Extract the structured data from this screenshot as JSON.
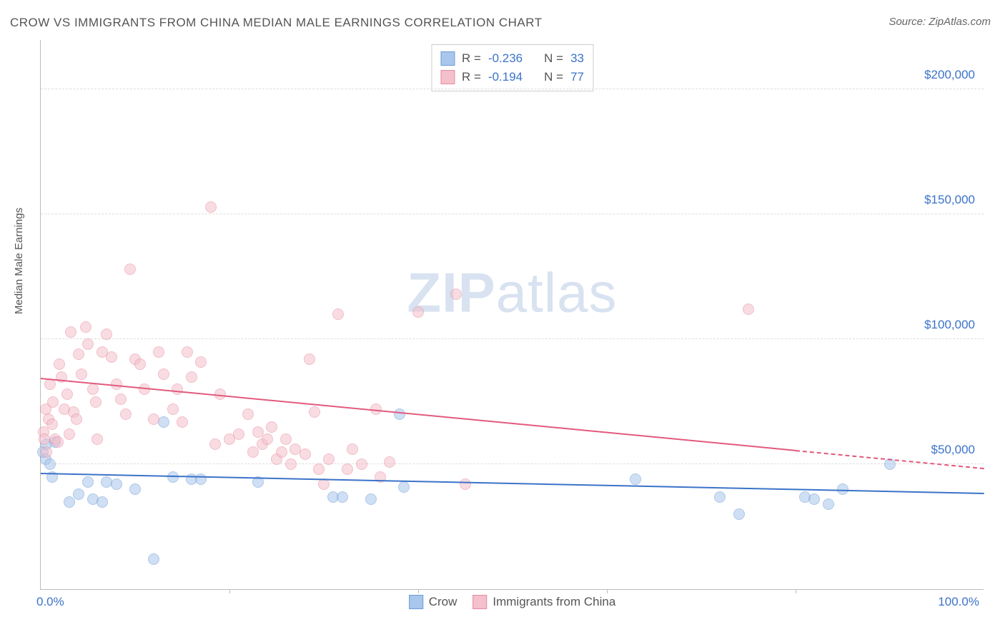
{
  "title": "CROW VS IMMIGRANTS FROM CHINA MEDIAN MALE EARNINGS CORRELATION CHART",
  "source": "Source: ZipAtlas.com",
  "watermark": {
    "bold": "ZIP",
    "light": "atlas"
  },
  "chart": {
    "type": "scatter",
    "y_axis_label": "Median Male Earnings",
    "x_min": 0,
    "x_max": 100,
    "y_min": 0,
    "y_max": 220000,
    "y_ticks": [
      50000,
      100000,
      150000,
      200000
    ],
    "y_tick_labels": [
      "$50,000",
      "$100,000",
      "$150,000",
      "$200,000"
    ],
    "x_tick_marks": [
      20,
      40,
      60,
      80
    ],
    "x_tick_left": "0.0%",
    "x_tick_right": "100.0%",
    "grid_color": "#dddddd",
    "axis_color": "#bbbbbb",
    "background_color": "#ffffff",
    "tick_label_color": "#3b73c9",
    "point_radius": 8,
    "point_opacity": 0.55,
    "series": [
      {
        "name": "Crow",
        "fill_color": "#a9c6ec",
        "stroke_color": "#6d9bd6",
        "points": [
          [
            0.2,
            55000
          ],
          [
            0.5,
            52000
          ],
          [
            0.6,
            58000
          ],
          [
            1.0,
            50000
          ],
          [
            1.2,
            45000
          ],
          [
            1.5,
            59000
          ],
          [
            3.0,
            35000
          ],
          [
            4.0,
            38000
          ],
          [
            5.0,
            43000
          ],
          [
            5.5,
            36000
          ],
          [
            6.5,
            35000
          ],
          [
            7.0,
            43000
          ],
          [
            8.0,
            42000
          ],
          [
            10.0,
            40000
          ],
          [
            12.0,
            12000
          ],
          [
            13.0,
            67000
          ],
          [
            14.0,
            45000
          ],
          [
            16.0,
            44000
          ],
          [
            17.0,
            44000
          ],
          [
            23.0,
            43000
          ],
          [
            31.0,
            37000
          ],
          [
            32.0,
            37000
          ],
          [
            35.0,
            36000
          ],
          [
            38.0,
            70000
          ],
          [
            38.5,
            41000
          ],
          [
            63.0,
            44000
          ],
          [
            72.0,
            37000
          ],
          [
            74.0,
            30000
          ],
          [
            81.0,
            37000
          ],
          [
            82.0,
            36000
          ],
          [
            83.5,
            34000
          ],
          [
            85.0,
            40000
          ],
          [
            90.0,
            50000
          ]
        ],
        "trend": {
          "color": "#3b73c9",
          "x1": 0,
          "y1": 46000,
          "x2": 100,
          "y2": 38000,
          "dash_from_x": null
        }
      },
      {
        "name": "Immigrants from China",
        "fill_color": "#f4c0cc",
        "stroke_color": "#e88aa2",
        "points": [
          [
            0.3,
            63000
          ],
          [
            0.4,
            60000
          ],
          [
            0.5,
            72000
          ],
          [
            0.6,
            55000
          ],
          [
            0.8,
            68000
          ],
          [
            1.0,
            82000
          ],
          [
            1.2,
            66000
          ],
          [
            1.3,
            75000
          ],
          [
            1.5,
            60000
          ],
          [
            1.8,
            59000
          ],
          [
            2.0,
            90000
          ],
          [
            2.2,
            85000
          ],
          [
            2.5,
            72000
          ],
          [
            2.8,
            78000
          ],
          [
            3.0,
            62000
          ],
          [
            3.2,
            103000
          ],
          [
            3.5,
            71000
          ],
          [
            3.8,
            68000
          ],
          [
            4.0,
            94000
          ],
          [
            4.3,
            86000
          ],
          [
            4.8,
            105000
          ],
          [
            5.0,
            98000
          ],
          [
            5.5,
            80000
          ],
          [
            5.8,
            75000
          ],
          [
            6.0,
            60000
          ],
          [
            6.5,
            95000
          ],
          [
            7.0,
            102000
          ],
          [
            7.5,
            93000
          ],
          [
            8.0,
            82000
          ],
          [
            8.5,
            76000
          ],
          [
            9.0,
            70000
          ],
          [
            9.5,
            128000
          ],
          [
            10.0,
            92000
          ],
          [
            10.5,
            90000
          ],
          [
            11.0,
            80000
          ],
          [
            12.0,
            68000
          ],
          [
            12.5,
            95000
          ],
          [
            13.0,
            86000
          ],
          [
            14.0,
            72000
          ],
          [
            14.5,
            80000
          ],
          [
            15.0,
            67000
          ],
          [
            15.5,
            95000
          ],
          [
            16.0,
            85000
          ],
          [
            17.0,
            91000
          ],
          [
            18.0,
            153000
          ],
          [
            18.5,
            58000
          ],
          [
            19.0,
            78000
          ],
          [
            20.0,
            60000
          ],
          [
            21.0,
            62000
          ],
          [
            22.0,
            70000
          ],
          [
            22.5,
            55000
          ],
          [
            23.0,
            63000
          ],
          [
            23.5,
            58000
          ],
          [
            24.0,
            60000
          ],
          [
            24.5,
            65000
          ],
          [
            25.0,
            52000
          ],
          [
            25.5,
            55000
          ],
          [
            26.0,
            60000
          ],
          [
            26.5,
            50000
          ],
          [
            27.0,
            56000
          ],
          [
            28.0,
            54000
          ],
          [
            28.5,
            92000
          ],
          [
            29.0,
            71000
          ],
          [
            29.5,
            48000
          ],
          [
            30.0,
            42000
          ],
          [
            30.5,
            52000
          ],
          [
            31.5,
            110000
          ],
          [
            32.5,
            48000
          ],
          [
            33.0,
            56000
          ],
          [
            34.0,
            50000
          ],
          [
            35.5,
            72000
          ],
          [
            36.0,
            45000
          ],
          [
            37.0,
            51000
          ],
          [
            40.0,
            111000
          ],
          [
            44.0,
            118000
          ],
          [
            45.0,
            42000
          ],
          [
            75.0,
            112000
          ]
        ],
        "trend": {
          "color": "#e25a7d",
          "x1": 0,
          "y1": 84000,
          "x2": 100,
          "y2": 48000,
          "dash_from_x": 80
        }
      }
    ],
    "legend_top": [
      {
        "swatch_fill": "#a9c6ec",
        "swatch_stroke": "#6d9bd6",
        "r_label": "R =",
        "r_value": "-0.236",
        "n_label": "N =",
        "n_value": "33"
      },
      {
        "swatch_fill": "#f4c0cc",
        "swatch_stroke": "#e88aa2",
        "r_label": "R =",
        "r_value": "-0.194",
        "n_label": "N =",
        "n_value": "77"
      }
    ],
    "legend_bottom": [
      {
        "swatch_fill": "#a9c6ec",
        "swatch_stroke": "#6d9bd6",
        "label": "Crow"
      },
      {
        "swatch_fill": "#f4c0cc",
        "swatch_stroke": "#e88aa2",
        "label": "Immigrants from China"
      }
    ]
  }
}
